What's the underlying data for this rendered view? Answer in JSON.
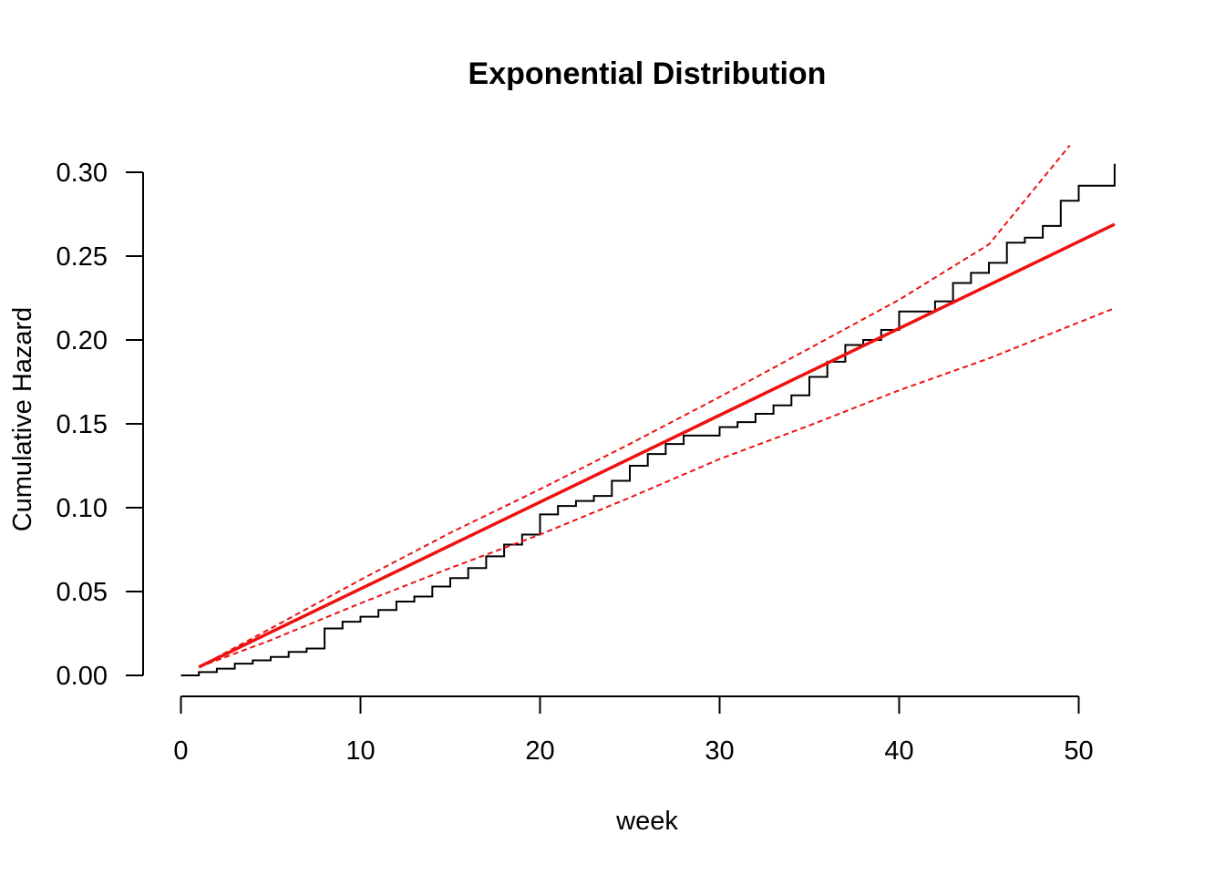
{
  "chart_data": {
    "type": "line",
    "title": "Exponential Distribution",
    "xlabel": "week",
    "ylabel": "Cumulative Hazard",
    "xlim": [
      0,
      52
    ],
    "ylim": [
      0,
      0.3
    ],
    "xticks": [
      "0",
      "10",
      "20",
      "30",
      "40",
      "50"
    ],
    "yticks": [
      "0.00",
      "0.05",
      "0.10",
      "0.15",
      "0.20",
      "0.25",
      "0.30"
    ],
    "grid": false,
    "legend": "none",
    "series": [
      {
        "style": "step",
        "color": "#000000",
        "x": [
          0,
          1,
          2,
          3,
          4,
          5,
          6,
          7,
          8,
          9,
          10,
          11,
          12,
          13,
          14,
          15,
          16,
          17,
          18,
          19,
          20,
          21,
          22,
          23,
          24,
          25,
          26,
          27,
          28,
          29,
          30,
          31,
          32,
          33,
          34,
          35,
          36,
          37,
          38,
          39,
          40,
          41,
          42,
          43,
          44,
          45,
          46,
          47,
          48,
          49,
          50,
          51,
          52
        ],
        "y": [
          0.0,
          0.002,
          0.004,
          0.007,
          0.009,
          0.011,
          0.014,
          0.016,
          0.028,
          0.032,
          0.035,
          0.039,
          0.044,
          0.047,
          0.053,
          0.058,
          0.064,
          0.071,
          0.078,
          0.084,
          0.096,
          0.101,
          0.104,
          0.107,
          0.116,
          0.125,
          0.132,
          0.138,
          0.143,
          0.143,
          0.148,
          0.151,
          0.156,
          0.161,
          0.167,
          0.178,
          0.187,
          0.197,
          0.2,
          0.206,
          0.217,
          0.217,
          0.223,
          0.234,
          0.24,
          0.246,
          0.258,
          0.261,
          0.268,
          0.283,
          0.292,
          0.292,
          0.305
        ]
      },
      {
        "style": "solid",
        "color": "#ee1111",
        "x": [
          1,
          52
        ],
        "y": [
          0.005,
          0.269
        ]
      },
      {
        "style": "dashed",
        "color": "#ee1111",
        "x": [
          1,
          5,
          10,
          15,
          20,
          25,
          30,
          35,
          40,
          45,
          49.5
        ],
        "y": [
          0.005,
          0.028,
          0.057,
          0.085,
          0.111,
          0.138,
          0.166,
          0.195,
          0.224,
          0.257,
          0.316
        ]
      },
      {
        "style": "dashed",
        "color": "#ee1111",
        "x": [
          1,
          5,
          10,
          15,
          20,
          25,
          30,
          35,
          40,
          45,
          52
        ],
        "y": [
          0.005,
          0.021,
          0.043,
          0.064,
          0.084,
          0.106,
          0.129,
          0.149,
          0.17,
          0.189,
          0.219
        ]
      }
    ]
  }
}
